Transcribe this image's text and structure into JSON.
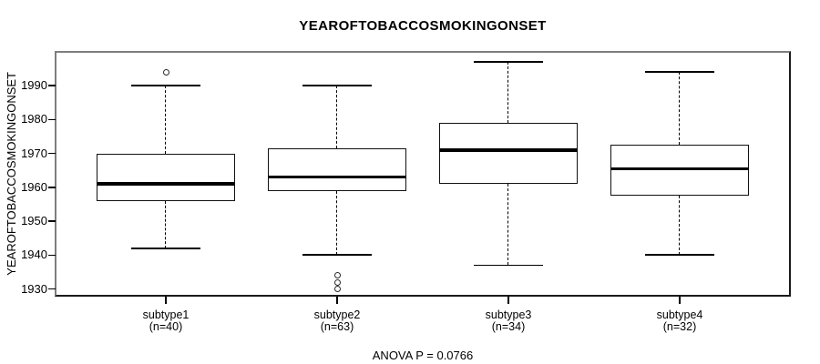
{
  "chart_data": {
    "type": "boxplot",
    "title": "YEAROFTOBACCOSMOKINGONSET",
    "ylabel": "YEAROFTOBACCOSMOKINGONSET",
    "xlabel": "",
    "annotation": "ANOVA P = 0.0766",
    "ylim": [
      1928,
      2000
    ],
    "yticks": [
      1930,
      1940,
      1950,
      1960,
      1970,
      1980,
      1990
    ],
    "grid": false,
    "legend": "none",
    "line_color": "#000000",
    "frame_color": "#7e7e7e",
    "groups": [
      {
        "label": "subtype1",
        "sublabel": "(n=40)",
        "n": 40,
        "whisker_low": 1942,
        "q1": 1956,
        "median": 1961,
        "q3": 1970,
        "whisker_high": 1990,
        "outliers": [
          1994
        ]
      },
      {
        "label": "subtype2",
        "sublabel": "(n=63)",
        "n": 63,
        "whisker_low": 1940,
        "q1": 1959,
        "median": 1963,
        "q3": 1971.5,
        "whisker_high": 1990,
        "outliers": [
          1934,
          1932,
          1930
        ]
      },
      {
        "label": "subtype3",
        "sublabel": "(n=34)",
        "n": 34,
        "whisker_low": 1937,
        "q1": 1961,
        "median": 1971,
        "q3": 1979,
        "whisker_high": 1997,
        "outliers": []
      },
      {
        "label": "subtype4",
        "sublabel": "(n=32)",
        "n": 32,
        "whisker_low": 1940,
        "q1": 1957.5,
        "median": 1965.5,
        "q3": 1972.5,
        "whisker_high": 1994,
        "outliers": []
      }
    ]
  }
}
